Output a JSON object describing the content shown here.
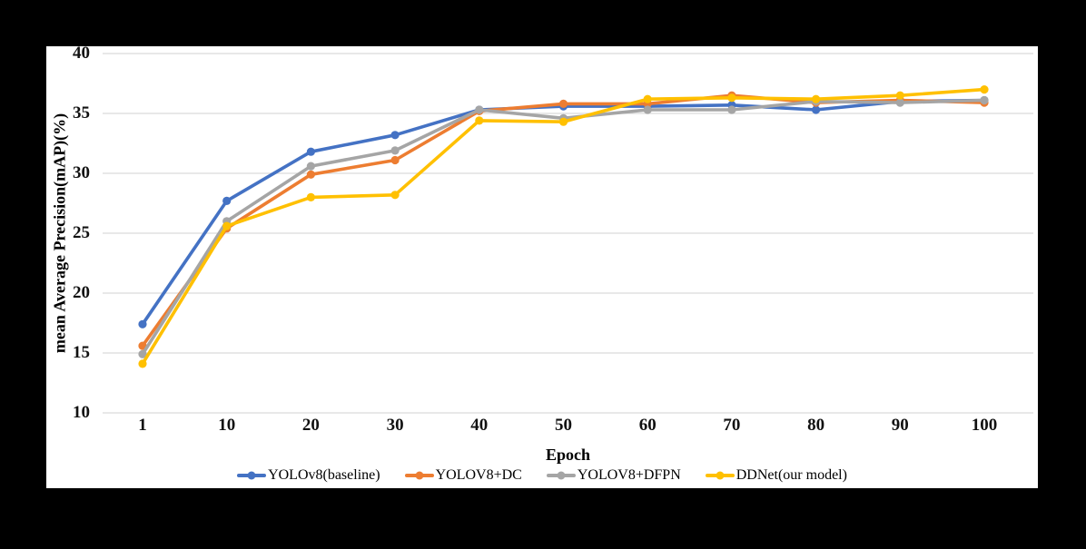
{
  "page": {
    "background": "#000000",
    "panel_background": "#ffffff",
    "gridline_color": "#d9d9d9"
  },
  "chart_data": {
    "type": "line",
    "title": "",
    "xlabel": "Epoch",
    "ylabel": "mean Average Precision(mAP)(%)",
    "x_tick_labels": [
      "1",
      "10",
      "20",
      "30",
      "40",
      "50",
      "60",
      "70",
      "80",
      "90",
      "100"
    ],
    "y_tick_labels": [
      "10",
      "15",
      "20",
      "25",
      "30",
      "35",
      "40"
    ],
    "y_ticks": [
      10,
      15,
      20,
      25,
      30,
      35,
      40
    ],
    "ylim": [
      10,
      40
    ],
    "grid": "horizontal",
    "legend_position": "bottom",
    "marker": "circle",
    "categories": [
      1,
      10,
      20,
      30,
      40,
      50,
      60,
      70,
      80,
      90,
      100
    ],
    "series": [
      {
        "name": "YOLOv8(baseline)",
        "color": "#4472C4",
        "values": [
          17.4,
          27.7,
          31.8,
          33.2,
          35.3,
          35.6,
          35.6,
          35.7,
          35.3,
          36.0,
          36.1
        ]
      },
      {
        "name": "YOLOV8+DC",
        "color": "#ED7D31",
        "values": [
          15.6,
          25.4,
          29.9,
          31.1,
          35.2,
          35.8,
          35.8,
          36.5,
          35.9,
          36.1,
          35.9
        ]
      },
      {
        "name": "YOLOV8+DFPN",
        "color": "#A5A5A5",
        "values": [
          14.9,
          26.0,
          30.6,
          31.9,
          35.3,
          34.6,
          35.3,
          35.3,
          36.0,
          35.9,
          36.1
        ]
      },
      {
        "name": "DDNet(our model)",
        "color": "#FFC000",
        "values": [
          14.1,
          25.6,
          28.0,
          28.2,
          34.4,
          34.3,
          36.2,
          36.3,
          36.2,
          36.5,
          37.0
        ]
      }
    ]
  }
}
